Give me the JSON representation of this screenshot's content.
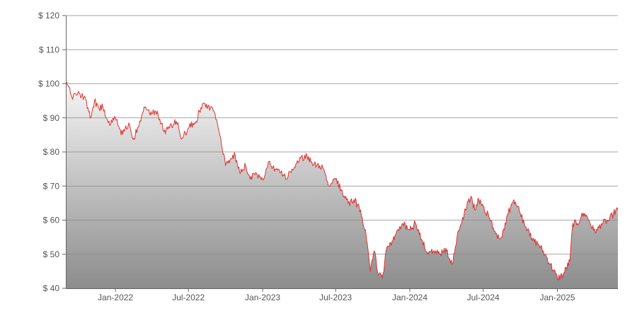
{
  "chart_data": {
    "type": "area",
    "title": "",
    "xlabel": "",
    "ylabel": "",
    "y_tick_prefix": "$ ",
    "ylim": [
      40,
      120
    ],
    "y_ticks": [
      40,
      50,
      60,
      70,
      80,
      90,
      100,
      110,
      120
    ],
    "x_ticks": [
      {
        "date": "2022-01-01",
        "label": "Jan-2022"
      },
      {
        "date": "2022-07-01",
        "label": "Jul-2022"
      },
      {
        "date": "2023-01-01",
        "label": "Jan-2023"
      },
      {
        "date": "2023-07-01",
        "label": "Jul-2023"
      },
      {
        "date": "2024-01-01",
        "label": "Jan-2024"
      },
      {
        "date": "2024-07-01",
        "label": "Jul-2024"
      },
      {
        "date": "2025-01-01",
        "label": "Jan-2025"
      }
    ],
    "xlim": [
      "2021-08-31",
      "2025-05-31"
    ],
    "grid": true,
    "legend": "none",
    "colors": {
      "line": "#e03030",
      "fill_top": "#f6f6f6",
      "fill_bottom": "#8c8c8c",
      "grid": "#888888",
      "axis": "#666666"
    },
    "series": [
      {
        "points": [
          [
            "2021-08-31",
            100
          ],
          [
            "2021-09-08",
            99
          ],
          [
            "2021-09-15",
            96
          ],
          [
            "2021-09-25",
            97
          ],
          [
            "2021-10-05",
            97
          ],
          [
            "2021-10-15",
            96
          ],
          [
            "2021-10-25",
            93
          ],
          [
            "2021-11-01",
            90
          ],
          [
            "2021-11-10",
            95
          ],
          [
            "2021-11-20",
            93
          ],
          [
            "2021-12-01",
            93
          ],
          [
            "2021-12-10",
            90
          ],
          [
            "2021-12-20",
            88
          ],
          [
            "2022-01-01",
            90
          ],
          [
            "2022-01-15",
            85
          ],
          [
            "2022-01-25",
            87
          ],
          [
            "2022-02-05",
            88
          ],
          [
            "2022-02-15",
            84
          ],
          [
            "2022-03-01",
            88
          ],
          [
            "2022-03-15",
            93
          ],
          [
            "2022-04-01",
            91
          ],
          [
            "2022-04-15",
            92
          ],
          [
            "2022-05-01",
            86
          ],
          [
            "2022-05-15",
            87
          ],
          [
            "2022-06-01",
            89
          ],
          [
            "2022-06-15",
            84
          ],
          [
            "2022-07-01",
            87
          ],
          [
            "2022-07-20",
            89
          ],
          [
            "2022-08-01",
            93
          ],
          [
            "2022-08-15",
            94
          ],
          [
            "2022-09-01",
            92
          ],
          [
            "2022-09-15",
            86
          ],
          [
            "2022-10-01",
            76
          ],
          [
            "2022-10-15",
            78
          ],
          [
            "2022-10-25",
            79
          ],
          [
            "2022-11-05",
            74
          ],
          [
            "2022-11-20",
            76
          ],
          [
            "2022-12-01",
            72
          ],
          [
            "2022-12-15",
            74
          ],
          [
            "2023-01-01",
            72
          ],
          [
            "2023-01-15",
            77
          ],
          [
            "2023-02-01",
            75
          ],
          [
            "2023-02-15",
            74
          ],
          [
            "2023-03-01",
            72
          ],
          [
            "2023-03-15",
            75
          ],
          [
            "2023-04-01",
            77
          ],
          [
            "2023-04-15",
            79
          ],
          [
            "2023-05-01",
            77
          ],
          [
            "2023-05-15",
            76
          ],
          [
            "2023-06-01",
            75
          ],
          [
            "2023-06-15",
            70
          ],
          [
            "2023-07-01",
            72
          ],
          [
            "2023-07-15",
            69
          ],
          [
            "2023-08-01",
            65
          ],
          [
            "2023-08-15",
            66
          ],
          [
            "2023-09-01",
            63
          ],
          [
            "2023-09-15",
            55
          ],
          [
            "2023-09-25",
            45
          ],
          [
            "2023-10-05",
            51
          ],
          [
            "2023-10-15",
            44
          ],
          [
            "2023-10-25",
            43
          ],
          [
            "2023-11-05",
            52
          ],
          [
            "2023-11-20",
            54
          ],
          [
            "2023-12-01",
            57
          ],
          [
            "2023-12-15",
            59
          ],
          [
            "2024-01-01",
            57
          ],
          [
            "2024-01-15",
            59
          ],
          [
            "2024-02-01",
            54
          ],
          [
            "2024-02-15",
            50
          ],
          [
            "2024-03-01",
            51
          ],
          [
            "2024-03-15",
            50
          ],
          [
            "2024-04-01",
            51
          ],
          [
            "2024-04-15",
            47
          ],
          [
            "2024-05-01",
            57
          ],
          [
            "2024-05-15",
            62
          ],
          [
            "2024-06-01",
            67
          ],
          [
            "2024-06-10",
            63
          ],
          [
            "2024-06-20",
            66
          ],
          [
            "2024-07-01",
            64
          ],
          [
            "2024-07-15",
            61
          ],
          [
            "2024-08-01",
            56
          ],
          [
            "2024-08-15",
            55
          ],
          [
            "2024-09-01",
            62
          ],
          [
            "2024-09-15",
            66
          ],
          [
            "2024-10-01",
            62
          ],
          [
            "2024-10-15",
            58
          ],
          [
            "2024-11-01",
            54
          ],
          [
            "2024-11-15",
            53
          ],
          [
            "2024-12-01",
            50
          ],
          [
            "2024-12-15",
            47
          ],
          [
            "2025-01-01",
            43
          ],
          [
            "2025-01-15",
            44
          ],
          [
            "2025-02-01",
            48
          ],
          [
            "2025-02-08",
            59
          ],
          [
            "2025-02-20",
            59
          ],
          [
            "2025-03-01",
            61
          ],
          [
            "2025-03-10",
            62
          ],
          [
            "2025-03-20",
            60
          ],
          [
            "2025-04-01",
            57
          ],
          [
            "2025-04-10",
            57
          ],
          [
            "2025-04-20",
            59
          ],
          [
            "2025-05-10",
            60
          ],
          [
            "2025-05-20",
            62
          ],
          [
            "2025-05-31",
            63
          ]
        ]
      }
    ]
  }
}
